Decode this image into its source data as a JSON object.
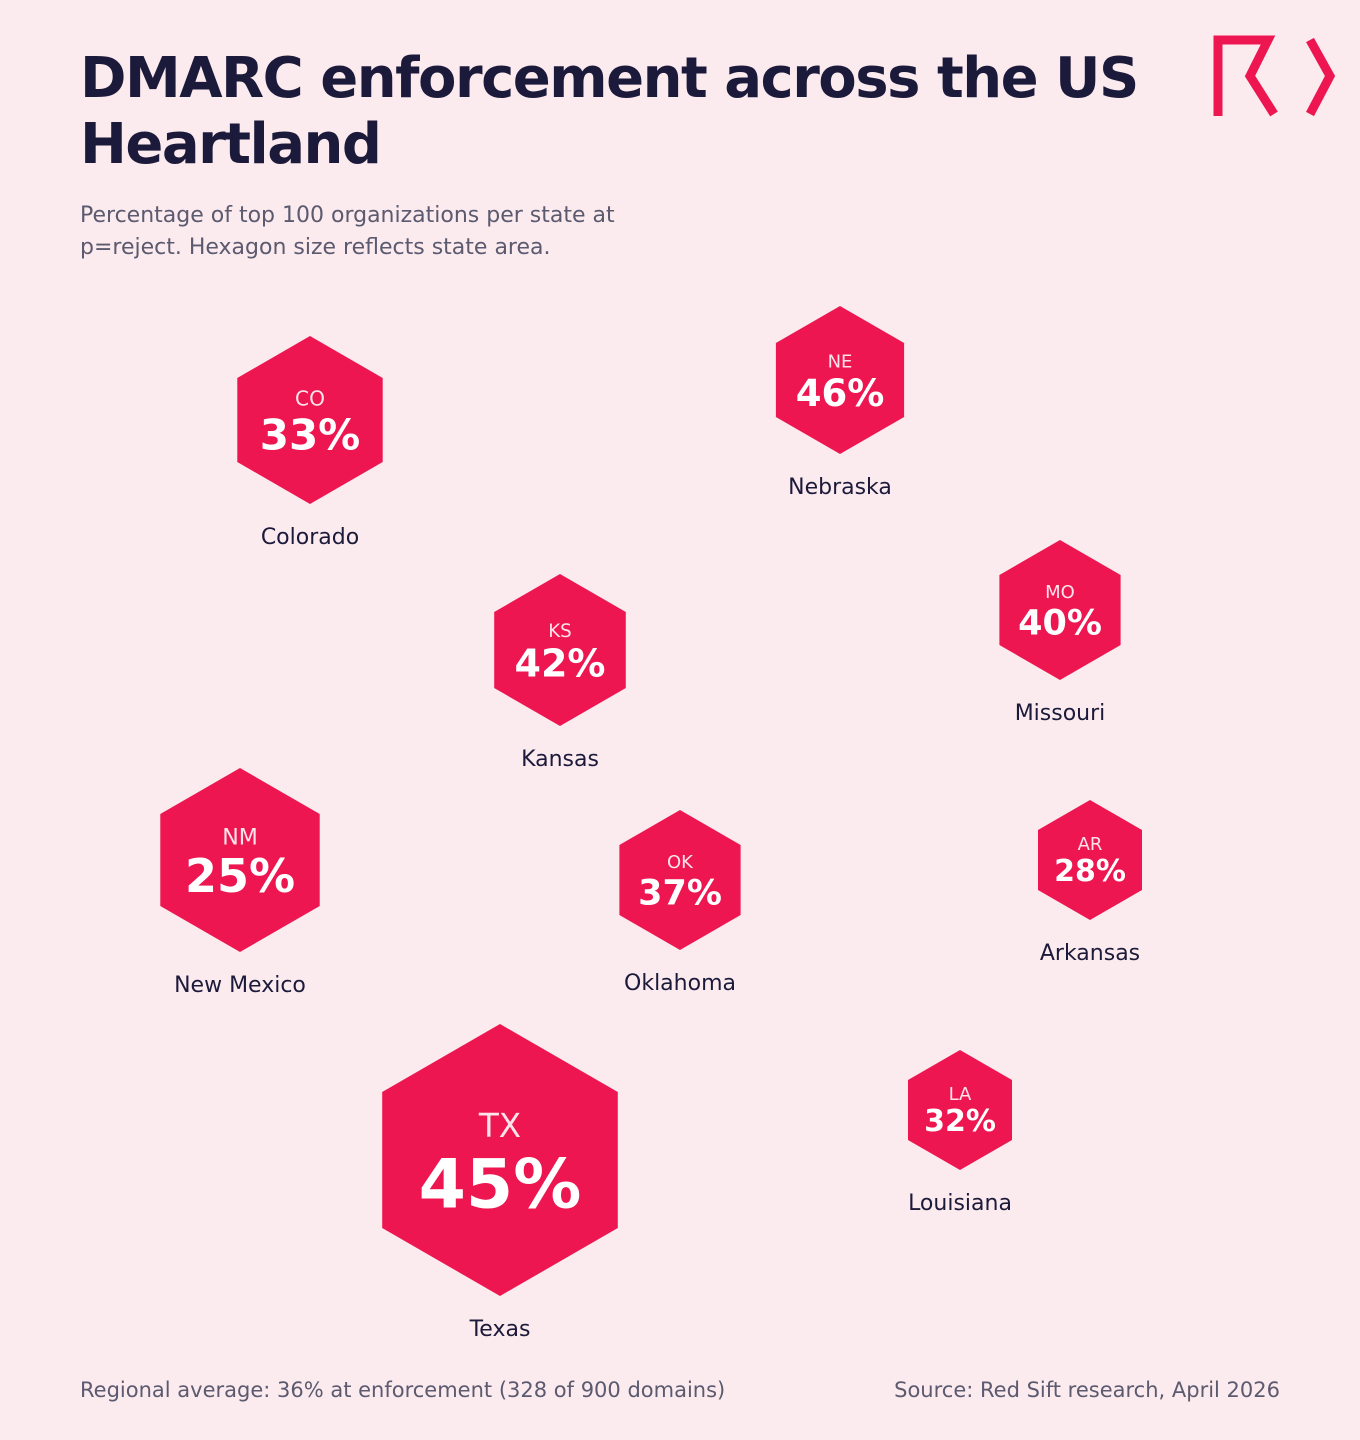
{
  "title": "DMARC enforcement across the US Heartland",
  "subtitle": "Percentage of top 100 organizations per state at p=reject. Hexagon size reflects state area.",
  "logo": {
    "icon": "red-sift-logo",
    "color": "#ed1651"
  },
  "colors": {
    "hexagon": "#ed1651",
    "background": "#fbeaee",
    "text": "#1c1a3a"
  },
  "chart_data": {
    "type": "hex-map",
    "unit": "%",
    "states": [
      {
        "abbr": "CO",
        "name": "Colorado",
        "value": 33
      },
      {
        "abbr": "NE",
        "name": "Nebraska",
        "value": 46
      },
      {
        "abbr": "KS",
        "name": "Kansas",
        "value": 42
      },
      {
        "abbr": "MO",
        "name": "Missouri",
        "value": 40
      },
      {
        "abbr": "NM",
        "name": "New Mexico",
        "value": 25
      },
      {
        "abbr": "OK",
        "name": "Oklahoma",
        "value": 37
      },
      {
        "abbr": "AR",
        "name": "Arkansas",
        "value": 28
      },
      {
        "abbr": "TX",
        "name": "Texas",
        "value": 45
      },
      {
        "abbr": "LA",
        "name": "Louisiana",
        "value": 32
      }
    ]
  },
  "footer": {
    "average": "Regional average: 36% at enforcement (328 of 900 domains)",
    "source": "Source: Red Sift research, April 2026"
  }
}
